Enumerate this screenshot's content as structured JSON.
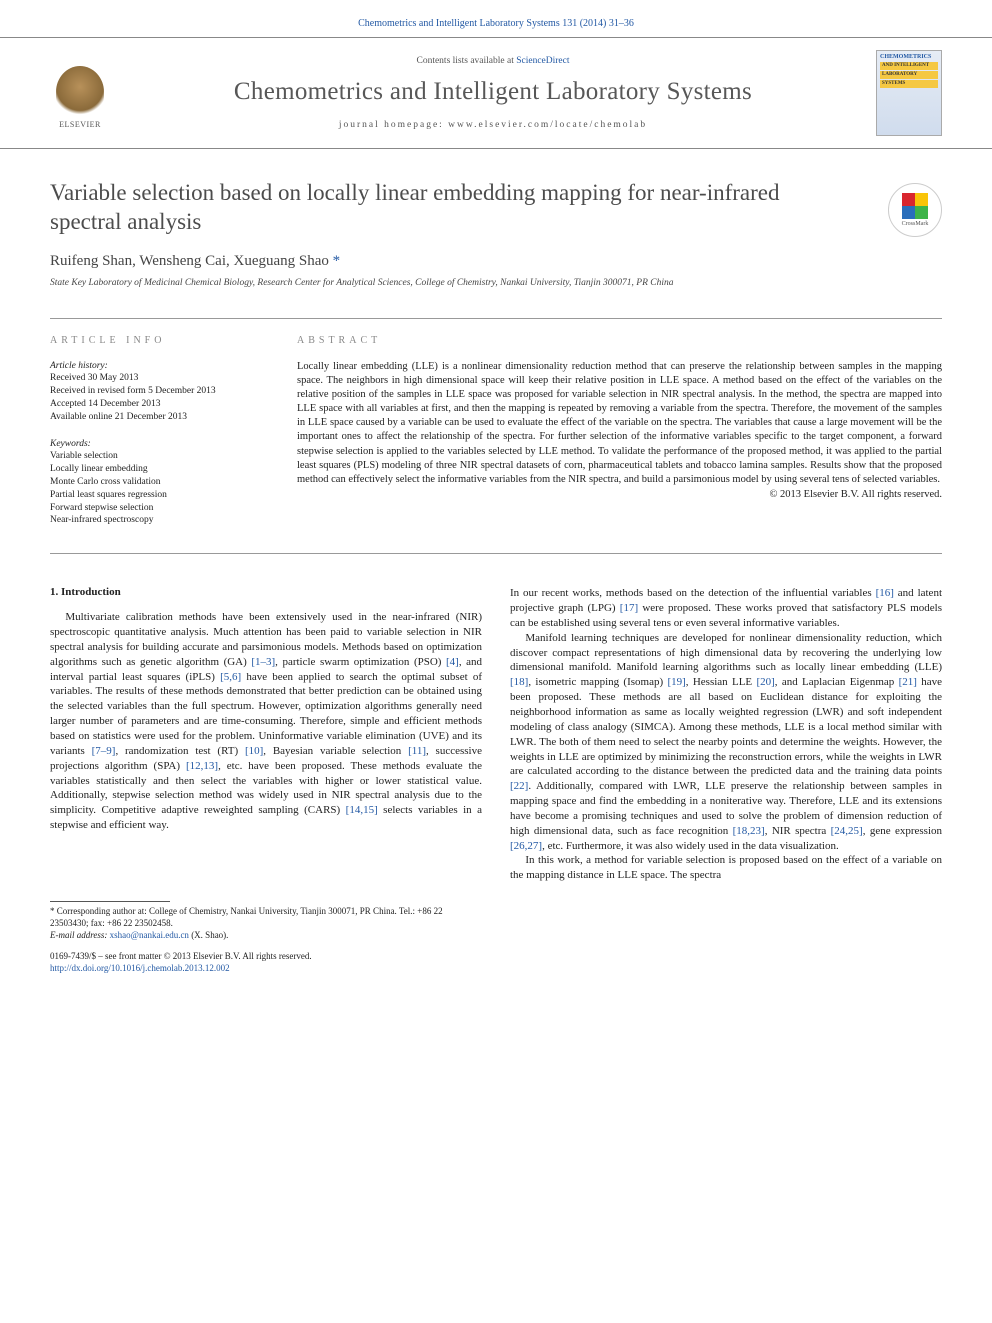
{
  "citation": "Chemometrics and Intelligent Laboratory Systems 131 (2014) 31–36",
  "masthead": {
    "contents_pre": "Contents lists available at ",
    "contents_link": "ScienceDirect",
    "journal_name": "Chemometrics and Intelligent Laboratory Systems",
    "homepage_label": "journal homepage: www.elsevier.com/locate/chemolab",
    "publisher": "ELSEVIER",
    "cover_text": "CHEMOMETRICS",
    "cover_band1": "AND INTELLIGENT",
    "cover_band2": "LABORATORY",
    "cover_band3": "SYSTEMS"
  },
  "crossmark": "CrossMark",
  "title": "Variable selection based on locally linear embedding mapping for near-infrared spectral analysis",
  "authors": "Ruifeng Shan, Wensheng Cai, Xueguang Shao ",
  "corr_mark": "*",
  "affiliation": "State Key Laboratory of Medicinal Chemical Biology, Research Center for Analytical Sciences, College of Chemistry, Nankai University, Tianjin 300071, PR China",
  "info": {
    "label": "ARTICLE INFO",
    "history_hdr": "Article history:",
    "history": [
      "Received 30 May 2013",
      "Received in revised form 5 December 2013",
      "Accepted 14 December 2013",
      "Available online 21 December 2013"
    ],
    "keywords_hdr": "Keywords:",
    "keywords": [
      "Variable selection",
      "Locally linear embedding",
      "Monte Carlo cross validation",
      "Partial least squares regression",
      "Forward stepwise selection",
      "Near-infrared spectroscopy"
    ]
  },
  "abstract": {
    "label": "ABSTRACT",
    "text": "Locally linear embedding (LLE) is a nonlinear dimensionality reduction method that can preserve the relationship between samples in the mapping space. The neighbors in high dimensional space will keep their relative position in LLE space. A method based on the effect of the variables on the relative position of the samples in LLE space was proposed for variable selection in NIR spectral analysis. In the method, the spectra are mapped into LLE space with all variables at first, and then the mapping is repeated by removing a variable from the spectra. Therefore, the movement of the samples in LLE space caused by a variable can be used to evaluate the effect of the variable on the spectra. The variables that cause a large movement will be the important ones to affect the relationship of the spectra. For further selection of the informative variables specific to the target component, a forward stepwise selection is applied to the variables selected by LLE method. To validate the performance of the proposed method, it was applied to the partial least squares (PLS) modeling of three NIR spectral datasets of corn, pharmaceutical tablets and tobacco lamina samples. Results show that the proposed method can effectively select the informative variables from the NIR spectra, and build a parsimonious model by using several tens of selected variables.",
    "copyright": "© 2013 Elsevier B.V. All rights reserved."
  },
  "body": {
    "heading": "1. Introduction",
    "col1_p1a": "Multivariate calibration methods have been extensively used in the near-infrared (NIR) spectroscopic quantitative analysis. Much attention has been paid to variable selection in NIR spectral analysis for building accurate and parsimonious models. Methods based on optimization algorithms such as genetic algorithm (GA) ",
    "ref_1_3": "[1–3]",
    "col1_p1b": ", particle swarm optimization (PSO) ",
    "ref_4": "[4]",
    "col1_p1c": ", and interval partial least squares (iPLS) ",
    "ref_5_6": "[5,6]",
    "col1_p1d": " have been applied to search the optimal subset of variables. The results of these methods demonstrated that better prediction can be obtained using the selected variables than the full spectrum. However, optimization algorithms generally need larger number of parameters and are time-consuming. Therefore, simple and efficient methods based on statistics were used for the problem. Uninformative variable elimination (UVE) and its variants ",
    "ref_7_9": "[7–9]",
    "col1_p1e": ", randomization test (RT) ",
    "ref_10": "[10]",
    "col1_p1f": ", Bayesian variable selection ",
    "ref_11": "[11]",
    "col1_p1g": ", successive projections algorithm (SPA) ",
    "ref_12_13": "[12,13]",
    "col1_p1h": ", etc. have been proposed. These methods evaluate the variables statistically and then select the variables with higher or lower statistical value. Additionally, stepwise selection method was widely used in NIR spectral analysis due to the simplicity. Competitive adaptive reweighted sampling (CARS) ",
    "ref_14_15": "[14,15]",
    "col1_p1i": " selects variables in a stepwise and efficient way.",
    "col2_p0a": "In our recent works, methods based on the detection of the influential variables ",
    "ref_16": "[16]",
    "col2_p0b": " and latent projective graph (LPG) ",
    "ref_17": "[17]",
    "col2_p0c": " were proposed. These works proved that satisfactory PLS models can be established using several tens or even several informative variables.",
    "col2_p1a": "Manifold learning techniques are developed for nonlinear dimensionality reduction, which discover compact representations of high dimensional data by recovering the underlying low dimensional manifold. Manifold learning algorithms such as locally linear embedding (LLE) ",
    "ref_18": "[18]",
    "col2_p1b": ", isometric mapping (Isomap) ",
    "ref_19": "[19]",
    "col2_p1c": ", Hessian LLE ",
    "ref_20": "[20]",
    "col2_p1d": ", and Laplacian Eigenmap ",
    "ref_21": "[21]",
    "col2_p1e": " have been proposed. These methods are all based on Euclidean distance for exploiting the neighborhood information as same as locally weighted regression (LWR) and soft independent modeling of class analogy (SIMCA). Among these methods, LLE is a local method similar with LWR. The both of them need to select the nearby points and determine the weights. However, the weights in LLE are optimized by minimizing the reconstruction errors, while the weights in LWR are calculated according to the distance between the predicted data and the training data points ",
    "ref_22": "[22]",
    "col2_p1f": ". Additionally, compared with LWR, LLE preserve the relationship between samples in mapping space and find the embedding in a noniterative way. Therefore, LLE and its extensions have become a promising techniques and used to solve the problem of dimension reduction of high dimensional data, such as face recognition ",
    "ref_18_23": "[18,23]",
    "col2_p1g": ", NIR spectra ",
    "ref_24_25": "[24,25]",
    "col2_p1h": ", gene expression ",
    "ref_26_27": "[26,27]",
    "col2_p1i": ", etc. Furthermore, it was also widely used in the data visualization.",
    "col2_p2": "In this work, a method for variable selection is proposed based on the effect of a variable on the mapping distance in LLE space. The spectra"
  },
  "footnotes": {
    "corr": "* Corresponding author at: College of Chemistry, Nankai University, Tianjin 300071, PR China. Tel.: +86 22 23503430; fax: +86 22 23502458.",
    "email_label": "E-mail address: ",
    "email": "xshao@nankai.edu.cn",
    "email_suffix": " (X. Shao)."
  },
  "bottom": {
    "issn": "0169-7439/$ – see front matter © 2013 Elsevier B.V. All rights reserved.",
    "doi": "http://dx.doi.org/10.1016/j.chemolab.2013.12.002"
  },
  "colors": {
    "link": "#2359a4",
    "text": "#222222",
    "heading_gray": "#4c4c4c"
  }
}
